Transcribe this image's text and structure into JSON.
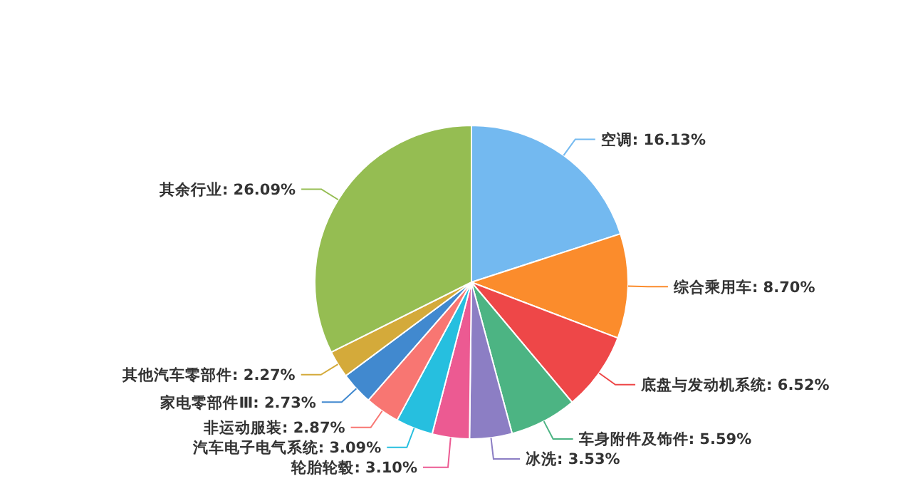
{
  "chart_data": {
    "type": "pie",
    "categories": [
      "空调",
      "综合乘用车",
      "底盘与发动机系统",
      "车身附件及饰件",
      "冰洗",
      "轮胎轮毂",
      "汽车电子电气系统",
      "非运动服装",
      "家电零部件Ⅲ",
      "其他汽车零部件",
      "其余行业"
    ],
    "values": [
      16.13,
      8.7,
      6.52,
      5.59,
      3.53,
      3.1,
      3.09,
      2.87,
      2.73,
      2.27,
      26.09
    ],
    "value_labels": [
      "16.13%",
      "8.70%",
      "6.52%",
      "5.59%",
      "3.53%",
      "3.10%",
      "3.09%",
      "2.87%",
      "2.73%",
      "2.27%",
      "26.09%"
    ],
    "colors": [
      "#73b9f0",
      "#fb8c2c",
      "#ee4748",
      "#4cb483",
      "#8c7ec4",
      "#ec5a92",
      "#26bfdf",
      "#f87672",
      "#4189cf",
      "#d4aa3a",
      "#95bd52"
    ]
  }
}
